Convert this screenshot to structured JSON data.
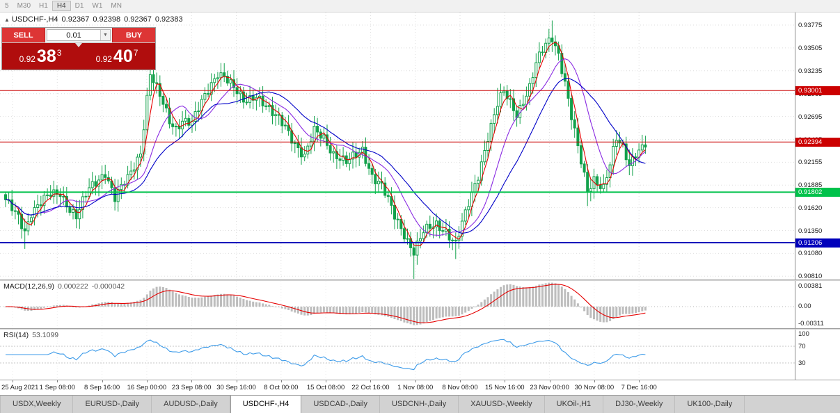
{
  "toolbar": {
    "timeframes": [
      "5",
      "M30",
      "H1",
      "H4",
      "D1",
      "W1",
      "MN"
    ],
    "active_timeframe": "H4"
  },
  "chart": {
    "header": {
      "collapse_icon": "▲",
      "symbol_period": "USDCHF-,H4",
      "open": "0.92367",
      "high": "0.92398",
      "low": "0.92367",
      "close": "0.92383"
    },
    "trade_panel": {
      "sell_label": "SELL",
      "buy_label": "BUY",
      "volume": "0.01",
      "dropdown_icon": "▼",
      "sell_price_small": "0.92",
      "sell_price_big": "38",
      "sell_price_sup": "3",
      "buy_price_small": "0.92",
      "buy_price_big": "40",
      "buy_price_sup": "7"
    },
    "price_axis_ticks": [
      "0.93775",
      "0.93505",
      "0.93235",
      "0.92965",
      "0.92695",
      "0.92425",
      "0.92155",
      "0.91885",
      "0.91620",
      "0.91350",
      "0.91080",
      "0.90810"
    ],
    "hlines": [
      {
        "price": 0.93001,
        "label": "0.93001",
        "color": "#cc0000",
        "width": 1
      },
      {
        "price": 0.92394,
        "label": "0.92394",
        "color": "#cc0000",
        "width": 1
      },
      {
        "price": 0.91802,
        "label": "0.91802",
        "color": "#00c24b",
        "width": 2
      },
      {
        "price": 0.91206,
        "label": "0.91206",
        "color": "#0000bb",
        "width": 2
      }
    ]
  },
  "macd": {
    "title": "MACD(12,26,9)",
    "value_main": "0.000222",
    "value_signal": "-0.000042",
    "axis_labels": [
      "0.00381",
      "0.00",
      "-0.00311"
    ],
    "params": {
      "fast": 12,
      "slow": 26,
      "signal": 9
    }
  },
  "rsi": {
    "title": "RSI(14)",
    "value": "53.1099",
    "axis_labels": [
      "100",
      "70",
      "30"
    ],
    "levels": [
      70,
      30
    ],
    "period": 14
  },
  "time_axis": [
    "25 Aug 2021",
    "1 Sep 08:00",
    "8 Sep 16:00",
    "16 Sep 00:00",
    "23 Sep 08:00",
    "30 Sep 16:00",
    "8 Oct 00:00",
    "15 Oct 08:00",
    "22 Oct 16:00",
    "1 Nov 08:00",
    "8 Nov 08:00",
    "15 Nov 16:00",
    "23 Nov 00:00",
    "30 Nov 08:00",
    "7 Dec 16:00"
  ],
  "tabs": {
    "items": [
      "USDX,Weekly",
      "EURUSD-,Daily",
      "AUDUSD-,Daily",
      "USDCHF-,H4",
      "USDCAD-,Daily",
      "USDCNH-,Daily",
      "XAUUSD-,Weekly",
      "UKOil-,H1",
      "DJ30-,Weekly",
      "UK100-,Daily"
    ],
    "active": "USDCHF-,H4"
  },
  "chart_data": {
    "type": "candlestick",
    "symbol": "USDCHF",
    "period": "H4",
    "candles_count": 200,
    "price_top_tick": 0.93775,
    "price_step": 0.0027,
    "keyframes": [
      [
        0,
        0.9168
      ],
      [
        4,
        0.9152
      ],
      [
        6,
        0.9136
      ],
      [
        8,
        0.9157
      ],
      [
        11,
        0.9166
      ],
      [
        14,
        0.9177
      ],
      [
        17,
        0.9181
      ],
      [
        20,
        0.9161
      ],
      [
        22,
        0.915
      ],
      [
        26,
        0.9184
      ],
      [
        29,
        0.9197
      ],
      [
        31,
        0.9205
      ],
      [
        34,
        0.9172
      ],
      [
        38,
        0.9196
      ],
      [
        42,
        0.9229
      ],
      [
        44,
        0.9292
      ],
      [
        45,
        0.932
      ],
      [
        47,
        0.9301
      ],
      [
        49,
        0.9283
      ],
      [
        51,
        0.9264
      ],
      [
        53,
        0.9257
      ],
      [
        55,
        0.9267
      ],
      [
        58,
        0.9261
      ],
      [
        61,
        0.9285
      ],
      [
        64,
        0.9309
      ],
      [
        66,
        0.9323
      ],
      [
        68,
        0.9318
      ],
      [
        71,
        0.9301
      ],
      [
        74,
        0.9287
      ],
      [
        78,
        0.9297
      ],
      [
        81,
        0.9281
      ],
      [
        83,
        0.9271
      ],
      [
        87,
        0.9259
      ],
      [
        91,
        0.9233
      ],
      [
        93,
        0.9221
      ],
      [
        96,
        0.9251
      ],
      [
        99,
        0.9245
      ],
      [
        102,
        0.9227
      ],
      [
        106,
        0.9214
      ],
      [
        109,
        0.9223
      ],
      [
        111,
        0.9231
      ],
      [
        114,
        0.9201
      ],
      [
        117,
        0.9187
      ],
      [
        121,
        0.9151
      ],
      [
        124,
        0.9132
      ],
      [
        127,
        0.9111
      ],
      [
        130,
        0.9132
      ],
      [
        134,
        0.9142
      ],
      [
        137,
        0.9136
      ],
      [
        140,
        0.9119
      ],
      [
        143,
        0.9153
      ],
      [
        147,
        0.9201
      ],
      [
        150,
        0.9247
      ],
      [
        153,
        0.9283
      ],
      [
        155,
        0.9297
      ],
      [
        157,
        0.9285
      ],
      [
        159,
        0.9273
      ],
      [
        161,
        0.929
      ],
      [
        163,
        0.9305
      ],
      [
        165,
        0.9331
      ],
      [
        168,
        0.9353
      ],
      [
        170,
        0.9363
      ],
      [
        172,
        0.9345
      ],
      [
        174,
        0.9311
      ],
      [
        176,
        0.9269
      ],
      [
        178,
        0.9231
      ],
      [
        181,
        0.9181
      ],
      [
        183,
        0.9197
      ],
      [
        186,
        0.9187
      ],
      [
        188,
        0.9213
      ],
      [
        190,
        0.9241
      ],
      [
        192,
        0.9231
      ],
      [
        194,
        0.9213
      ],
      [
        196,
        0.9229
      ],
      [
        199,
        0.9238
      ]
    ],
    "extra_low_wicks": {
      "6": 0.0012,
      "127": 0.0016,
      "140": 0.001,
      "181": 0.0008
    },
    "extra_high_wicks": {
      "45": 0.0008,
      "153": 0.001,
      "170": 0.0009
    },
    "moving_averages": [
      {
        "name": "fast",
        "period": 4,
        "color": "#e60000"
      },
      {
        "name": "mid",
        "period": 12,
        "color": "#8a2be2"
      },
      {
        "name": "slow",
        "period": 22,
        "color": "#0000c8"
      }
    ]
  },
  "colors": {
    "candle_green": "#12a14b",
    "macd_hist_gray": "#bdbdbd",
    "macd_signal_red": "#e60000",
    "rsi_blue": "#3d9be9",
    "grid": "#dedede",
    "panel_dark_red": "#b00d0d",
    "button_red": "#dd3535"
  }
}
